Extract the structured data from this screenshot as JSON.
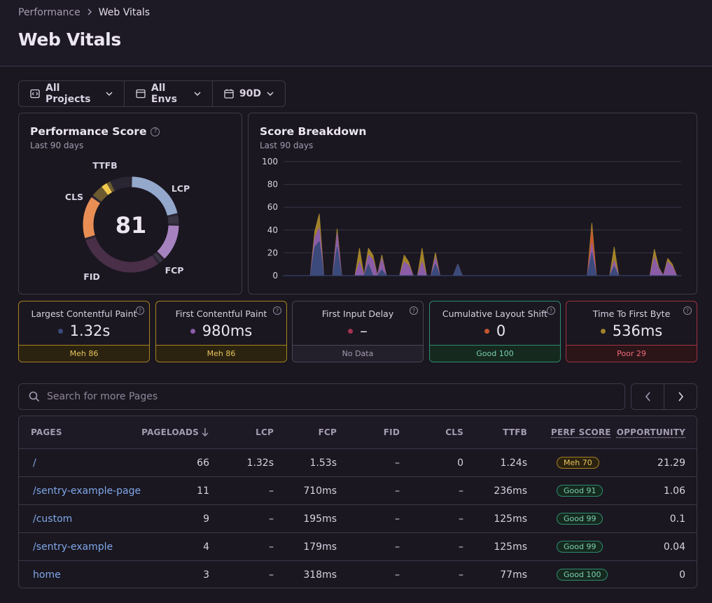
{
  "breadcrumb": {
    "parent": "Performance",
    "current": "Web Vitals"
  },
  "title": "Web Vitals",
  "filters": {
    "projects": "All Projects",
    "envs": "All Envs",
    "period": "90D"
  },
  "score_panel": {
    "title": "Performance Score",
    "subtitle": "Last 90 days",
    "score": "81",
    "segments": [
      {
        "label": "LCP",
        "color": "#94a8cc",
        "fraction": 0.215,
        "remainder": 0.035
      },
      {
        "label": "FCP",
        "color": "#a683bf",
        "fraction": 0.13,
        "remainder": 0.02
      },
      {
        "label": "FID",
        "color": "#4a2f48",
        "fraction": 0.3,
        "remainder": 0.0
      },
      {
        "label": "CLS",
        "color": "#e88e55",
        "fraction": 0.15,
        "remainder": 0.0
      },
      {
        "label": "TTFB",
        "color": "#6b5a30",
        "fraction": 0.082,
        "remainder": 0.0
      }
    ]
  },
  "breakdown": {
    "title": "Score Breakdown",
    "subtitle": "Last 90 days"
  },
  "chart_data": {
    "type": "area",
    "title": "Score Breakdown",
    "ylim": [
      0,
      100
    ],
    "yticks": [
      "0",
      "20",
      "40",
      "60",
      "80",
      "100"
    ],
    "stacked": true,
    "x": [
      0,
      1,
      2,
      3,
      4,
      5,
      6,
      7,
      8,
      9,
      10,
      11,
      12,
      13,
      14,
      15,
      16,
      17,
      18,
      19,
      20,
      21,
      22,
      23,
      24,
      25,
      26,
      27,
      28,
      29,
      30,
      31,
      32,
      33,
      34,
      35,
      36,
      37,
      38,
      39,
      40,
      41,
      42,
      43,
      44,
      45,
      46,
      47,
      48,
      49,
      50,
      51,
      52,
      53,
      54,
      55,
      56,
      57,
      58,
      59,
      60,
      61,
      62,
      63,
      64,
      65,
      66,
      67,
      68,
      69,
      70,
      71,
      72,
      73,
      74,
      75,
      76,
      77,
      78,
      79,
      80,
      81,
      82,
      83,
      84,
      85,
      86,
      87,
      88,
      89
    ],
    "series": [
      {
        "color": "#3b4a7a",
        "values": [
          0,
          0,
          0,
          0,
          0,
          0,
          0,
          25,
          30,
          0,
          0,
          0,
          25,
          0,
          0,
          0,
          0,
          0,
          0,
          10,
          0,
          0,
          5,
          0,
          0,
          0,
          0,
          0,
          0,
          0,
          0,
          0,
          0,
          0,
          10,
          0,
          0,
          0,
          0,
          10,
          0,
          0,
          0,
          0,
          0,
          0,
          0,
          0,
          0,
          0,
          0,
          0,
          0,
          0,
          0,
          0,
          0,
          0,
          0,
          0,
          0,
          0,
          0,
          0,
          0,
          0,
          0,
          0,
          0,
          20,
          0,
          0,
          0,
          0,
          8,
          0,
          0,
          0,
          0,
          0,
          0,
          0,
          0,
          0,
          0,
          0,
          0,
          0,
          0,
          0
        ]
      },
      {
        "color": "#8a5da6",
        "values": [
          0,
          0,
          0,
          0,
          0,
          0,
          0,
          8,
          12,
          0,
          0,
          0,
          12,
          0,
          0,
          0,
          0,
          12,
          0,
          8,
          14,
          0,
          10,
          0,
          0,
          0,
          0,
          12,
          9,
          0,
          0,
          12,
          0,
          0,
          6,
          0,
          0,
          0,
          0,
          0,
          0,
          0,
          0,
          0,
          0,
          0,
          0,
          0,
          0,
          0,
          0,
          0,
          0,
          0,
          0,
          0,
          0,
          0,
          0,
          0,
          0,
          0,
          0,
          0,
          0,
          0,
          0,
          0,
          0,
          8,
          0,
          0,
          0,
          0,
          5,
          0,
          0,
          0,
          0,
          0,
          0,
          0,
          0,
          16,
          6,
          0,
          12,
          8,
          0,
          0
        ]
      },
      {
        "color": "#c7562f",
        "values": [
          0,
          0,
          0,
          0,
          0,
          0,
          0,
          0,
          0,
          0,
          0,
          0,
          0,
          0,
          0,
          0,
          0,
          0,
          0,
          0,
          0,
          0,
          0,
          0,
          0,
          0,
          0,
          0,
          0,
          0,
          0,
          0,
          0,
          0,
          0,
          0,
          0,
          0,
          0,
          0,
          0,
          0,
          0,
          0,
          0,
          0,
          0,
          0,
          0,
          0,
          0,
          0,
          0,
          0,
          0,
          0,
          0,
          0,
          0,
          0,
          0,
          0,
          0,
          0,
          0,
          0,
          0,
          0,
          0,
          12,
          0,
          0,
          0,
          0,
          0,
          0,
          0,
          0,
          0,
          0,
          0,
          0,
          0,
          0,
          0,
          0,
          0,
          0,
          0,
          0
        ]
      },
      {
        "color": "#a2822a",
        "values": [
          0,
          0,
          0,
          0,
          0,
          0,
          0,
          6,
          12,
          0,
          0,
          0,
          4,
          0,
          0,
          0,
          0,
          12,
          0,
          6,
          4,
          0,
          3,
          0,
          0,
          0,
          0,
          6,
          3,
          0,
          0,
          12,
          0,
          0,
          4,
          0,
          0,
          0,
          0,
          0,
          0,
          0,
          0,
          0,
          0,
          0,
          0,
          0,
          0,
          0,
          0,
          0,
          0,
          0,
          0,
          0,
          0,
          0,
          0,
          0,
          0,
          0,
          0,
          0,
          0,
          0,
          0,
          0,
          0,
          6,
          0,
          0,
          0,
          0,
          12,
          0,
          0,
          0,
          0,
          0,
          0,
          0,
          0,
          7,
          1,
          0,
          3,
          2,
          0,
          0
        ]
      }
    ]
  },
  "cards": [
    {
      "name": "Largest Contentful Paint",
      "value": "1.32s",
      "dot": "#3b4a7a",
      "status": "Meh 86",
      "kind": "meh"
    },
    {
      "name": "First Contentful Paint",
      "value": "980ms",
      "dot": "#8a5da6",
      "status": "Meh 86",
      "kind": "meh"
    },
    {
      "name": "First Input Delay",
      "value": "–",
      "dot": "#a3334e",
      "status": "No Data",
      "kind": "none"
    },
    {
      "name": "Cumulative Layout Shift",
      "value": "0",
      "dot": "#c7562f",
      "status": "Good 100",
      "kind": "good"
    },
    {
      "name": "Time To First Byte",
      "value": "536ms",
      "dot": "#a2822a",
      "status": "Poor 29",
      "kind": "poor"
    }
  ],
  "search": {
    "placeholder": "Search for more Pages"
  },
  "table": {
    "headers": {
      "pages": "PAGES",
      "pageloads": "PAGELOADS",
      "lcp": "LCP",
      "fcp": "FCP",
      "fid": "FID",
      "cls": "CLS",
      "ttfb": "TTFB",
      "perf": "PERF SCORE",
      "opp": "OPPORTUNITY"
    },
    "rows": [
      {
        "page": "/",
        "pageloads": "66",
        "lcp": "1.32s",
        "fcp": "1.53s",
        "fid": "–",
        "cls": "0",
        "ttfb": "1.24s",
        "score": "Meh 70",
        "kind": "meh",
        "opp": "21.29"
      },
      {
        "page": "/sentry-example-page",
        "pageloads": "11",
        "lcp": "–",
        "fcp": "710ms",
        "fid": "–",
        "cls": "–",
        "ttfb": "236ms",
        "score": "Good 91",
        "kind": "good",
        "opp": "1.06"
      },
      {
        "page": "/custom",
        "pageloads": "9",
        "lcp": "–",
        "fcp": "195ms",
        "fid": "–",
        "cls": "–",
        "ttfb": "125ms",
        "score": "Good 99",
        "kind": "good",
        "opp": "0.1"
      },
      {
        "page": "/sentry-example",
        "pageloads": "4",
        "lcp": "–",
        "fcp": "179ms",
        "fid": "–",
        "cls": "–",
        "ttfb": "125ms",
        "score": "Good 99",
        "kind": "good",
        "opp": "0.04"
      },
      {
        "page": "home",
        "pageloads": "3",
        "lcp": "–",
        "fcp": "318ms",
        "fid": "–",
        "cls": "–",
        "ttfb": "77ms",
        "score": "Good 100",
        "kind": "good",
        "opp": "0"
      }
    ]
  }
}
